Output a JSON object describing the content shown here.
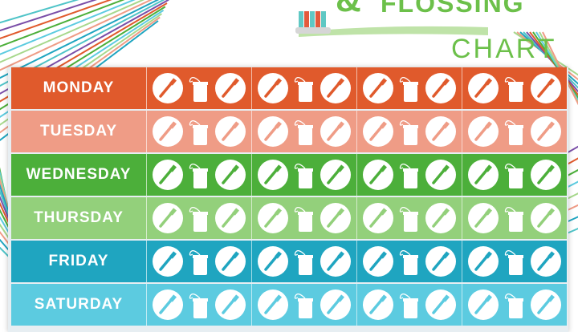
{
  "title": {
    "amp": "&",
    "line1": "FLOSSING",
    "line2": "CHART"
  },
  "colors": {
    "title_green": "#6cc04a",
    "brush_bristles_teal": "#5fc8c4",
    "brush_bristles_red": "#e35a3c"
  },
  "rows": [
    {
      "day": "MONDAY",
      "color": "#e05a2c",
      "brush": "#e05a2c"
    },
    {
      "day": "TUESDAY",
      "color": "#ef9c86",
      "brush": "#ef9c86"
    },
    {
      "day": "WEDNESDAY",
      "color": "#4caf3a",
      "brush": "#4caf3a"
    },
    {
      "day": "THURSDAY",
      "color": "#93d07b",
      "brush": "#93d07b"
    },
    {
      "day": "FRIDAY",
      "color": "#1fa5c0",
      "brush": "#1fa5c0"
    },
    {
      "day": "SATURDAY",
      "color": "#5ccbe0",
      "brush": "#5ccbe0"
    }
  ],
  "columns_per_row": 4,
  "cell_icons": [
    "toothbrush-icon",
    "floss-icon",
    "toothbrush-icon"
  ]
}
